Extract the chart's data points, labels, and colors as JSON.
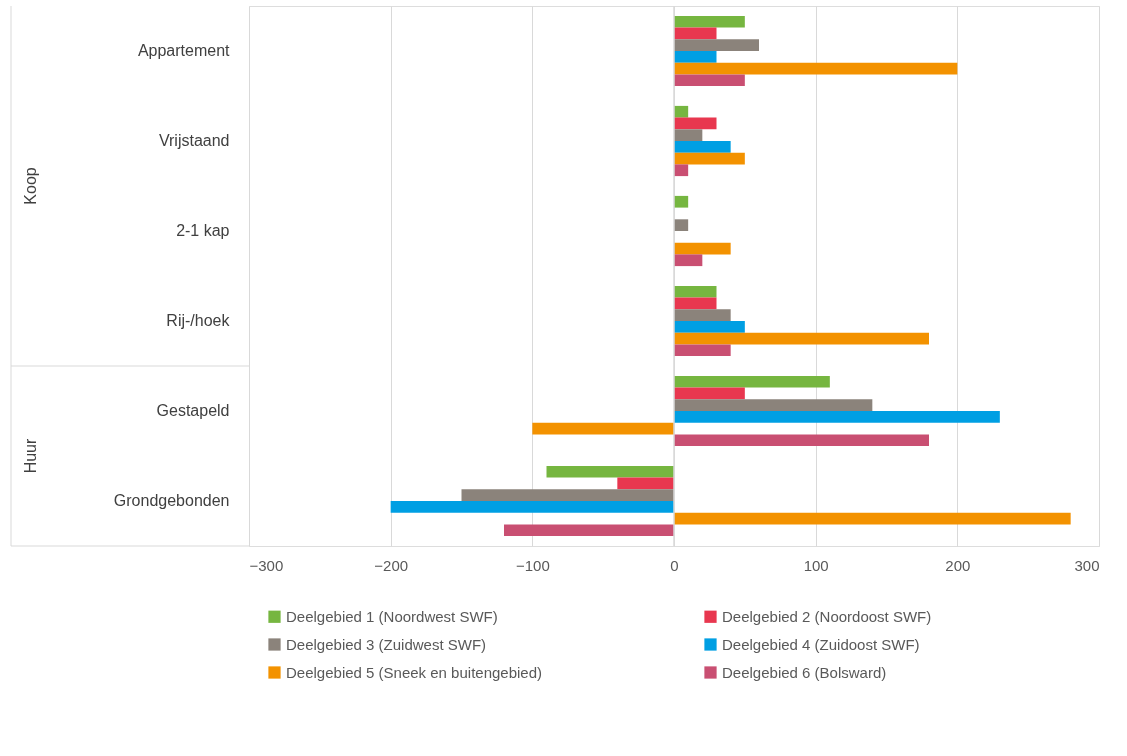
{
  "chart_data": {
    "type": "bar",
    "orientation": "horizontal",
    "categories": [
      "Appartement",
      "Vrijstaand",
      "2-1 kap",
      "Rij-/hoek",
      "Gestapeld",
      "Grondgebonden"
    ],
    "series": [
      {
        "name": "Deelgebied 1 (Noordwest SWF)",
        "color": "#76b640",
        "values": [
          50,
          10,
          10,
          30,
          110,
          -90
        ]
      },
      {
        "name": "Deelgebied 2 (Noordoost SWF)",
        "color": "#e8374f",
        "values": [
          30,
          30,
          null,
          30,
          50,
          -40
        ]
      },
      {
        "name": "Deelgebied 3 (Zuidwest SWF)",
        "color": "#8b837b",
        "values": [
          60,
          20,
          10,
          40,
          140,
          -150
        ]
      },
      {
        "name": "Deelgebied 4 (Zuidoost SWF)",
        "color": "#009fe3",
        "values": [
          30,
          40,
          null,
          50,
          230,
          -200
        ]
      },
      {
        "name": "Deelgebied 5 (Sneek en buitengebied)",
        "color": "#f39200",
        "values": [
          200,
          50,
          40,
          180,
          -100,
          280
        ]
      },
      {
        "name": "Deelgebied 6 (Bolsward)",
        "color": "#c94f72",
        "values": [
          50,
          10,
          20,
          40,
          180,
          -120
        ]
      }
    ],
    "annotations": [
      "Koop",
      "Huur"
    ],
    "xlim": [
      -300,
      300
    ],
    "xticks": [
      -300,
      -200,
      -100,
      0,
      100,
      200,
      300
    ],
    "grid": "x",
    "legend": "bottom"
  }
}
